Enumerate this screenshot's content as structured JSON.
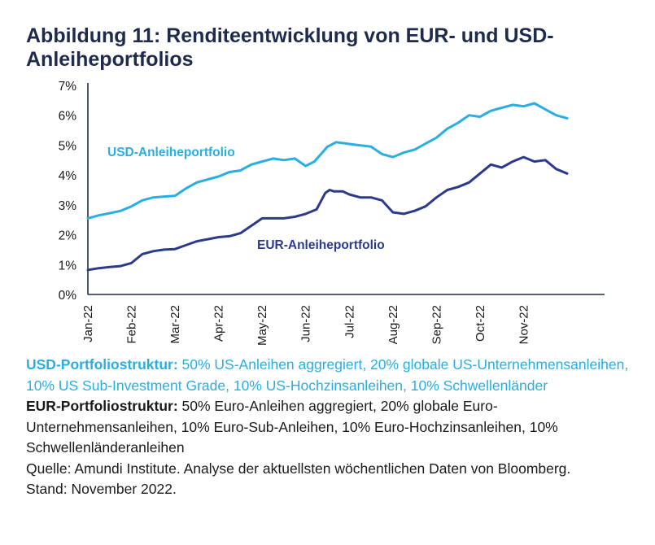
{
  "title": "Abbildung 11: Renditeentwicklung von EUR- und USD-Anleiheportfolios",
  "chart_data": {
    "type": "line",
    "ylim": [
      0,
      7
    ],
    "y_ticks": [
      "0%",
      "1%",
      "2%",
      "3%",
      "4%",
      "5%",
      "6%",
      "7%"
    ],
    "x_ticks": [
      "Jan-22",
      "Feb-22",
      "Mar-22",
      "Apr-22",
      "May-22",
      "Jun-22",
      "Jul-22",
      "Aug-22",
      "Sep-22",
      "Oct-22",
      "Nov-22"
    ],
    "x_range": [
      0,
      11
    ],
    "grid": false,
    "legend": "inline labels",
    "series": [
      {
        "name": "USD-Anleiheportfolio",
        "color": "#29aee3",
        "x": [
          0.0,
          0.25,
          0.5,
          0.75,
          1.0,
          1.25,
          1.5,
          1.75,
          2.0,
          2.25,
          2.5,
          2.75,
          3.0,
          3.25,
          3.5,
          3.75,
          4.0,
          4.25,
          4.5,
          4.75,
          5.0,
          5.2,
          5.5,
          5.7,
          5.95,
          6.2,
          6.5,
          6.75,
          7.0,
          7.25,
          7.5,
          7.75,
          8.0,
          8.25,
          8.5,
          8.75,
          9.0,
          9.25,
          9.5,
          9.75,
          10.0,
          10.25,
          10.5,
          10.75,
          11.0
        ],
        "values": [
          2.55,
          2.65,
          2.72,
          2.8,
          2.95,
          3.15,
          3.25,
          3.28,
          3.3,
          3.55,
          3.75,
          3.85,
          3.95,
          4.1,
          4.15,
          4.35,
          4.45,
          4.55,
          4.5,
          4.55,
          4.3,
          4.45,
          4.95,
          5.1,
          5.05,
          5.0,
          4.95,
          4.7,
          4.6,
          4.75,
          4.85,
          5.05,
          5.25,
          5.55,
          5.75,
          6.0,
          5.95,
          6.15,
          6.25,
          6.35,
          6.3,
          6.4,
          6.2,
          6.0,
          5.9
        ]
      },
      {
        "name": "EUR-Anleiheportfolio",
        "color": "#2b3a8c",
        "x": [
          0.0,
          0.25,
          0.5,
          0.75,
          1.0,
          1.25,
          1.5,
          1.75,
          2.0,
          2.25,
          2.5,
          2.75,
          3.0,
          3.25,
          3.5,
          3.75,
          4.0,
          4.25,
          4.5,
          4.75,
          5.0,
          5.25,
          5.45,
          5.55,
          5.65,
          5.85,
          6.0,
          6.25,
          6.5,
          6.75,
          7.0,
          7.25,
          7.5,
          7.75,
          8.0,
          8.25,
          8.5,
          8.75,
          9.0,
          9.25,
          9.5,
          9.75,
          10.0,
          10.25,
          10.5,
          10.75,
          11.0
        ],
        "values": [
          0.82,
          0.88,
          0.92,
          0.95,
          1.05,
          1.35,
          1.45,
          1.5,
          1.52,
          1.65,
          1.78,
          1.85,
          1.92,
          1.95,
          2.05,
          2.3,
          2.55,
          2.55,
          2.55,
          2.6,
          2.7,
          2.85,
          3.4,
          3.5,
          3.45,
          3.45,
          3.35,
          3.25,
          3.25,
          3.15,
          2.75,
          2.7,
          2.8,
          2.95,
          3.25,
          3.5,
          3.6,
          3.75,
          4.05,
          4.35,
          4.25,
          4.45,
          4.6,
          4.45,
          4.5,
          4.2,
          4.05
        ]
      }
    ]
  },
  "notes": {
    "usd_lead": "USD-Portfoliostruktur:",
    "usd_text": " 50% US-Anleihen aggregiert, 20% globale US-Unternehmensanleihen, 10% US Sub-Investment Grade, 10% US-Hochzinsanleihen, 10% Schwellenländer",
    "eur_lead": "EUR-Portfoliostruktur:",
    "eur_text": " 50% Euro-Anleihen aggregiert, 20% globale Euro-Unternehmensanleihen, 10% Euro-Sub-Anleihen, 10% Euro-Hochzinsanleihen, 10% Schwellenländeranleihen",
    "source": "Quelle: Amundi Institute. Analyse der aktuellsten wöchentlichen Daten von Bloomberg.",
    "date": "Stand: November 2022."
  }
}
